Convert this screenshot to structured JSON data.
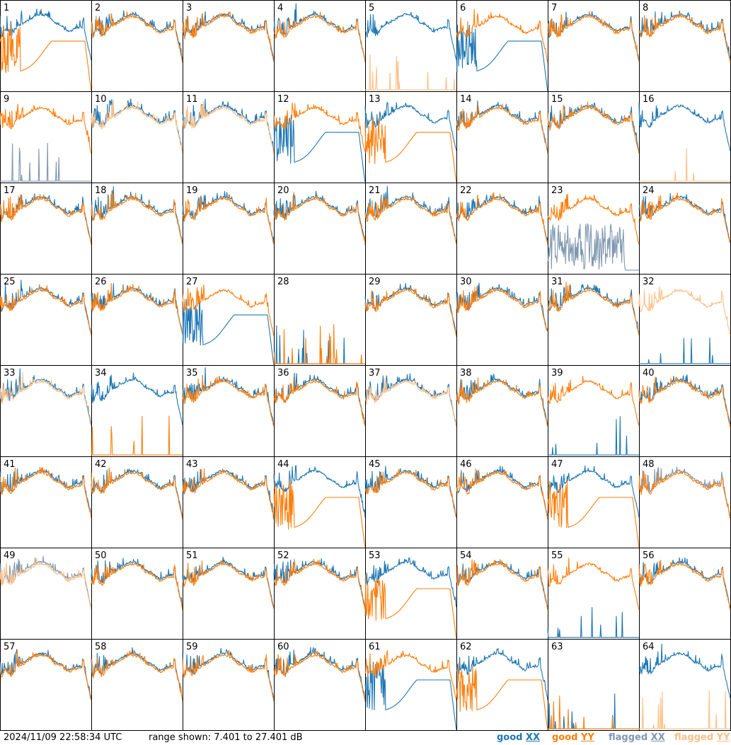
{
  "footer": {
    "timestamp": "2024/11/09 22:58:34 UTC",
    "range_text": "range shown: 7.401 to 27.401 dB"
  },
  "legend": [
    {
      "word": "good",
      "pol": "XX",
      "color": "#1f77b4"
    },
    {
      "word": "good",
      "pol": "YY",
      "color": "#ff7f0e"
    },
    {
      "word": "flagged",
      "pol": "XX",
      "color": "#7f97b0"
    },
    {
      "word": "flagged",
      "pol": "YY",
      "color": "#ffbf87"
    }
  ],
  "chart_data": {
    "type": "line",
    "grid": "8x8",
    "y_range_db": [
      7.401,
      27.401
    ],
    "colors": {
      "good_xx": "#1f77b4",
      "good_yy": "#ff7f0e",
      "flagged_xx": "#7f97b0",
      "flagged_yy": "#ffbf87"
    },
    "tiles": [
      {
        "id": "1",
        "xx": "good",
        "yy": "good",
        "xx_shape": "normal",
        "yy_shape": "dip"
      },
      {
        "id": "2",
        "xx": "good",
        "yy": "good",
        "xx_shape": "normal",
        "yy_shape": "normal"
      },
      {
        "id": "3",
        "xx": "good",
        "yy": "good",
        "xx_shape": "normal",
        "yy_shape": "normal"
      },
      {
        "id": "4",
        "xx": "good",
        "yy": "good",
        "xx_shape": "normal",
        "yy_shape": "normal"
      },
      {
        "id": "5",
        "xx": "good",
        "yy": "flagged",
        "xx_shape": "normal",
        "yy_shape": "dead"
      },
      {
        "id": "6",
        "xx": "good",
        "yy": "good",
        "xx_shape": "dip",
        "yy_shape": "normal"
      },
      {
        "id": "7",
        "xx": "good",
        "yy": "good",
        "xx_shape": "normal",
        "yy_shape": "normal"
      },
      {
        "id": "8",
        "xx": "good",
        "yy": "good",
        "xx_shape": "normal",
        "yy_shape": "normal"
      },
      {
        "id": "9",
        "xx": "flagged",
        "yy": "good",
        "xx_shape": "dead",
        "yy_shape": "normal"
      },
      {
        "id": "10",
        "xx": "good",
        "yy": "flagged",
        "xx_shape": "normal",
        "yy_shape": "normal"
      },
      {
        "id": "11",
        "xx": "good",
        "yy": "flagged",
        "xx_shape": "normal",
        "yy_shape": "normal"
      },
      {
        "id": "12",
        "xx": "good",
        "yy": "good",
        "xx_shape": "dip",
        "yy_shape": "normal"
      },
      {
        "id": "13",
        "xx": "good",
        "yy": "good",
        "xx_shape": "normal",
        "yy_shape": "dip"
      },
      {
        "id": "14",
        "xx": "good",
        "yy": "good",
        "xx_shape": "normal",
        "yy_shape": "normal"
      },
      {
        "id": "15",
        "xx": "good",
        "yy": "good",
        "xx_shape": "normal",
        "yy_shape": "normal"
      },
      {
        "id": "16",
        "xx": "good",
        "yy": "flagged",
        "xx_shape": "normal",
        "yy_shape": "dead"
      },
      {
        "id": "17",
        "xx": "good",
        "yy": "good",
        "xx_shape": "normal",
        "yy_shape": "normal"
      },
      {
        "id": "18",
        "xx": "good",
        "yy": "good",
        "xx_shape": "normal",
        "yy_shape": "normal"
      },
      {
        "id": "19",
        "xx": "good",
        "yy": "good",
        "xx_shape": "normal",
        "yy_shape": "normal"
      },
      {
        "id": "20",
        "xx": "good",
        "yy": "good",
        "xx_shape": "normal",
        "yy_shape": "normal"
      },
      {
        "id": "21",
        "xx": "good",
        "yy": "good",
        "xx_shape": "normal",
        "yy_shape": "normal"
      },
      {
        "id": "22",
        "xx": "good",
        "yy": "good",
        "xx_shape": "normal",
        "yy_shape": "normal"
      },
      {
        "id": "23",
        "xx": "flagged",
        "yy": "good",
        "xx_shape": "noisy",
        "yy_shape": "normal"
      },
      {
        "id": "24",
        "xx": "good",
        "yy": "good",
        "xx_shape": "normal",
        "yy_shape": "normal"
      },
      {
        "id": "25",
        "xx": "good",
        "yy": "good",
        "xx_shape": "normal",
        "yy_shape": "normal"
      },
      {
        "id": "26",
        "xx": "good",
        "yy": "good",
        "xx_shape": "normal",
        "yy_shape": "normal"
      },
      {
        "id": "27",
        "xx": "good",
        "yy": "good",
        "xx_shape": "dip",
        "yy_shape": "normal"
      },
      {
        "id": "28",
        "xx": "good",
        "yy": "good",
        "xx_shape": "dead",
        "yy_shape": "dead"
      },
      {
        "id": "29",
        "xx": "good",
        "yy": "good",
        "xx_shape": "normal",
        "yy_shape": "normal"
      },
      {
        "id": "30",
        "xx": "good",
        "yy": "good",
        "xx_shape": "normal",
        "yy_shape": "normal"
      },
      {
        "id": "31",
        "xx": "good",
        "yy": "good",
        "xx_shape": "normal",
        "yy_shape": "normal"
      },
      {
        "id": "32",
        "xx": "good",
        "yy": "flagged",
        "xx_shape": "dead",
        "yy_shape": "normal"
      },
      {
        "id": "33",
        "xx": "good",
        "yy": "flagged",
        "xx_shape": "normal",
        "yy_shape": "normal"
      },
      {
        "id": "34",
        "xx": "good",
        "yy": "good",
        "xx_shape": "normal",
        "yy_shape": "dead"
      },
      {
        "id": "35",
        "xx": "good",
        "yy": "good",
        "xx_shape": "normal",
        "yy_shape": "normal"
      },
      {
        "id": "36",
        "xx": "good",
        "yy": "good",
        "xx_shape": "normal",
        "yy_shape": "normal"
      },
      {
        "id": "37",
        "xx": "good",
        "yy": "flagged",
        "xx_shape": "normal",
        "yy_shape": "normal"
      },
      {
        "id": "38",
        "xx": "good",
        "yy": "good",
        "xx_shape": "normal",
        "yy_shape": "normal"
      },
      {
        "id": "39",
        "xx": "good",
        "yy": "good",
        "xx_shape": "dead",
        "yy_shape": "normal"
      },
      {
        "id": "40",
        "xx": "good",
        "yy": "good",
        "xx_shape": "normal",
        "yy_shape": "normal"
      },
      {
        "id": "41",
        "xx": "good",
        "yy": "good",
        "xx_shape": "normal",
        "yy_shape": "normal"
      },
      {
        "id": "42",
        "xx": "good",
        "yy": "good",
        "xx_shape": "normal",
        "yy_shape": "normal"
      },
      {
        "id": "43",
        "xx": "good",
        "yy": "good",
        "xx_shape": "normal",
        "yy_shape": "normal"
      },
      {
        "id": "44",
        "xx": "good",
        "yy": "good",
        "xx_shape": "normal",
        "yy_shape": "dip"
      },
      {
        "id": "45",
        "xx": "good",
        "yy": "good",
        "xx_shape": "normal",
        "yy_shape": "normal"
      },
      {
        "id": "46",
        "xx": "good",
        "yy": "good",
        "xx_shape": "normal",
        "yy_shape": "normal"
      },
      {
        "id": "47",
        "xx": "good",
        "yy": "good",
        "xx_shape": "normal",
        "yy_shape": "dip"
      },
      {
        "id": "48",
        "xx": "flagged",
        "yy": "good",
        "xx_shape": "normal",
        "yy_shape": "normal"
      },
      {
        "id": "49",
        "xx": "flagged",
        "yy": "flagged",
        "xx_shape": "normal",
        "yy_shape": "normal"
      },
      {
        "id": "50",
        "xx": "good",
        "yy": "good",
        "xx_shape": "normal",
        "yy_shape": "normal"
      },
      {
        "id": "51",
        "xx": "good",
        "yy": "good",
        "xx_shape": "normal",
        "yy_shape": "normal"
      },
      {
        "id": "52",
        "xx": "good",
        "yy": "good",
        "xx_shape": "normal",
        "yy_shape": "normal"
      },
      {
        "id": "53",
        "xx": "good",
        "yy": "good",
        "xx_shape": "normal",
        "yy_shape": "dip"
      },
      {
        "id": "54",
        "xx": "good",
        "yy": "good",
        "xx_shape": "normal",
        "yy_shape": "normal"
      },
      {
        "id": "55",
        "xx": "good",
        "yy": "good",
        "xx_shape": "dead",
        "yy_shape": "normal"
      },
      {
        "id": "56",
        "xx": "good",
        "yy": "good",
        "xx_shape": "normal",
        "yy_shape": "normal"
      },
      {
        "id": "57",
        "xx": "good",
        "yy": "good",
        "xx_shape": "normal",
        "yy_shape": "normal"
      },
      {
        "id": "58",
        "xx": "good",
        "yy": "good",
        "xx_shape": "normal",
        "yy_shape": "normal"
      },
      {
        "id": "59",
        "xx": "good",
        "yy": "good",
        "xx_shape": "normal",
        "yy_shape": "normal"
      },
      {
        "id": "60",
        "xx": "good",
        "yy": "good",
        "xx_shape": "normal",
        "yy_shape": "normal"
      },
      {
        "id": "61",
        "xx": "good",
        "yy": "good",
        "xx_shape": "dip",
        "yy_shape": "normal"
      },
      {
        "id": "62",
        "xx": "good",
        "yy": "good",
        "xx_shape": "normal",
        "yy_shape": "dip"
      },
      {
        "id": "63",
        "xx": "good",
        "yy": "good",
        "xx_shape": "dead",
        "yy_shape": "dead"
      },
      {
        "id": "64",
        "xx": "good",
        "yy": "flagged",
        "xx_shape": "normal",
        "yy_shape": "dead"
      }
    ]
  }
}
